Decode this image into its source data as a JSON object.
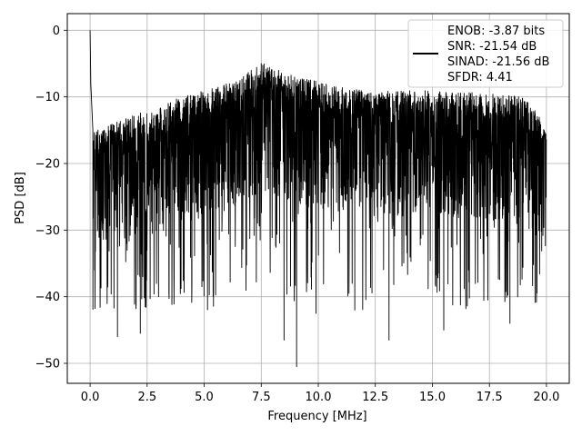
{
  "chart_data": {
    "type": "line",
    "title": "",
    "xlabel": "Frequency [MHz]",
    "ylabel": "PSD [dB]",
    "xlim": [
      -1.0,
      21.0
    ],
    "ylim": [
      -53.0,
      2.5
    ],
    "xticks": [
      0.0,
      2.5,
      5.0,
      7.5,
      10.0,
      12.5,
      15.0,
      17.5,
      20.0
    ],
    "xtick_labels": [
      "0.0",
      "2.5",
      "5.0",
      "7.5",
      "10.0",
      "12.5",
      "15.0",
      "17.5",
      "20.0"
    ],
    "yticks": [
      0,
      -10,
      -20,
      -30,
      -40,
      -50
    ],
    "ytick_labels": [
      "0",
      "−10",
      "−20",
      "−30",
      "−40",
      "−50"
    ],
    "grid": true,
    "legend_position": "top-right",
    "legend_lines": [
      "ENOB: -3.87 bits",
      "SNR: -21.54 dB",
      "SINAD: -21.56 dB",
      "SFDR: 4.41"
    ],
    "line_color": "#000000",
    "series": [
      {
        "x_start": 0.0,
        "x_end": 20.0,
        "dense_peaks_envelope": [
          [
            0.0,
            -15.0
          ],
          [
            1.0,
            -14.0
          ],
          [
            2.5,
            -12.0
          ],
          [
            4.0,
            -10.0
          ],
          [
            5.0,
            -9.0
          ],
          [
            6.0,
            -8.0
          ],
          [
            7.6,
            -5.0
          ],
          [
            9.0,
            -7.0
          ],
          [
            10.5,
            -8.0
          ],
          [
            12.0,
            -9.0
          ],
          [
            13.5,
            -9.0
          ],
          [
            15.0,
            -9.0
          ],
          [
            17.5,
            -9.5
          ],
          [
            19.0,
            -10.0
          ],
          [
            20.0,
            -14.0
          ]
        ],
        "notable_points": [
          {
            "x": 0.0,
            "y": 0.0
          },
          {
            "x": 0.03,
            "y": -8.0
          },
          {
            "x": 0.12,
            "y": -15.0
          },
          {
            "x": 0.2,
            "y": -36.0
          },
          {
            "x": 1.2,
            "y": -46.0
          },
          {
            "x": 2.2,
            "y": -45.5
          },
          {
            "x": 3.0,
            "y": -40.0
          },
          {
            "x": 7.5,
            "y": -5.0
          },
          {
            "x": 8.5,
            "y": -46.5
          },
          {
            "x": 9.05,
            "y": -50.5
          },
          {
            "x": 9.9,
            "y": -42.5
          },
          {
            "x": 11.6,
            "y": -42.0
          },
          {
            "x": 13.1,
            "y": -46.5
          },
          {
            "x": 15.5,
            "y": -45.0
          },
          {
            "x": 18.4,
            "y": -44.0
          }
        ]
      }
    ]
  }
}
